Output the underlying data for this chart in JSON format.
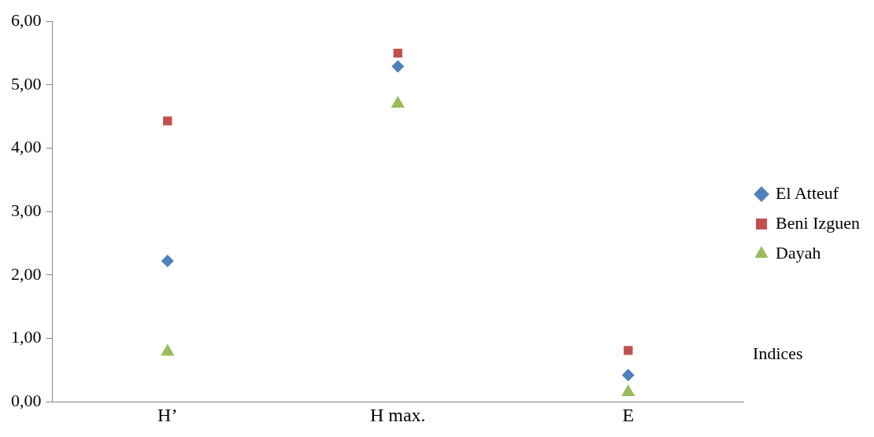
{
  "chart_data": {
    "type": "scatter",
    "xlabel": "Indices",
    "categories": [
      "H’",
      "H max.",
      "E"
    ],
    "series": [
      {
        "name": "El Atteuf",
        "color": "#4f81bd",
        "marker": "diamond",
        "values": [
          2.22,
          5.29,
          0.42
        ]
      },
      {
        "name": "Beni Izguen",
        "color": "#c0504d",
        "marker": "square",
        "values": [
          4.43,
          5.5,
          0.81
        ]
      },
      {
        "name": "Dayah",
        "color": "#9bbb59",
        "marker": "triangle",
        "values": [
          0.79,
          4.7,
          0.15
        ]
      }
    ],
    "ylim": [
      0,
      6
    ],
    "yticks": [
      {
        "value": 0,
        "label": "0,00"
      },
      {
        "value": 1,
        "label": "1,00"
      },
      {
        "value": 2,
        "label": "2,00"
      },
      {
        "value": 3,
        "label": "3,00"
      },
      {
        "value": 4,
        "label": "4,00"
      },
      {
        "value": 5,
        "label": "5,00"
      },
      {
        "value": 6,
        "label": "6,00"
      }
    ],
    "grid": false,
    "legend": "right"
  }
}
